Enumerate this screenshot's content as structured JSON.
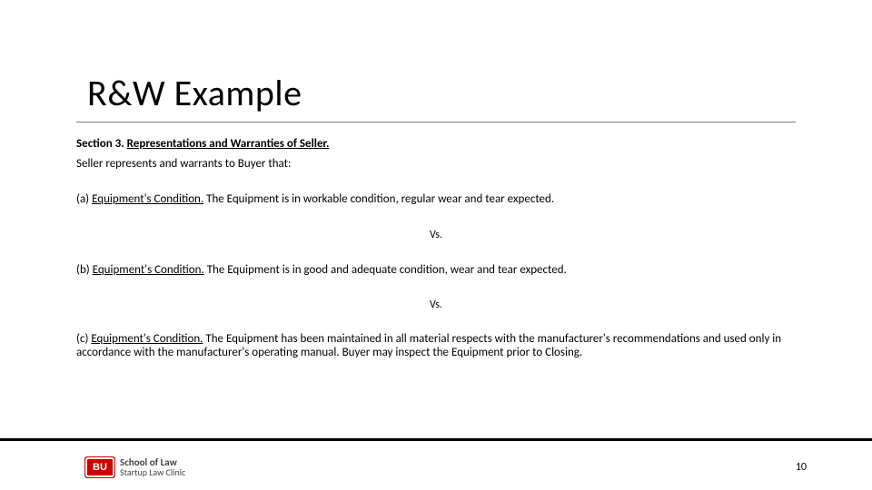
{
  "title": "R&W Example",
  "section": {
    "label": "Section 3.",
    "heading": "Representations and Warranties of Seller.",
    "intro": "Seller represents and warrants to Buyer that:"
  },
  "clauses": {
    "a": {
      "label": "(a)",
      "heading": "Equipment's Condition.",
      "text": " The Equipment is in workable condition, regular wear and tear expected."
    },
    "b": {
      "label": "(b)",
      "heading": "Equipment's Condition.",
      "text": " The Equipment is in good and adequate condition, wear and tear expected."
    },
    "c": {
      "label": "(c)",
      "heading": "Equipment's Condition.",
      "text": " The Equipment has been maintained in all material respects with the manufacturer's recommendations and used only in accordance with the manufacturer's operating manual. Buyer may inspect the Equipment prior to Closing."
    }
  },
  "vs": "Vs.",
  "logo": {
    "badge": "BU",
    "line1": "School of Law",
    "line2": "Startup Law Clinic"
  },
  "page": "10"
}
